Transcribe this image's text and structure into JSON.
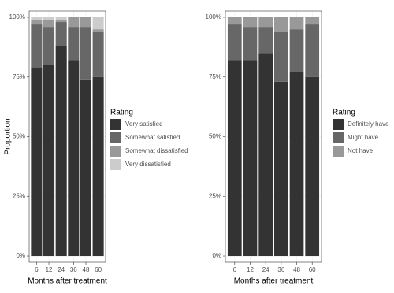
{
  "chart_data": [
    {
      "type": "stacked_bar",
      "x_label": "Months after treatment",
      "y_label": "Proportion",
      "categories": [
        "6",
        "12",
        "24",
        "36",
        "48",
        "60"
      ],
      "ylim": [
        0,
        100
      ],
      "yticks": [
        {
          "value": 0,
          "label": "0%"
        },
        {
          "value": 25,
          "label": "25%"
        },
        {
          "value": 50,
          "label": "50%"
        },
        {
          "value": 75,
          "label": "75%"
        },
        {
          "value": 100,
          "label": "100%"
        }
      ],
      "legend_title": "Rating",
      "series": [
        {
          "name": "Very satisfied",
          "color": "#333333",
          "values": [
            79,
            80,
            88,
            82,
            74,
            75
          ]
        },
        {
          "name": "Somewhat satisfied",
          "color": "#676767",
          "values": [
            18,
            16,
            10,
            14,
            22,
            19
          ]
        },
        {
          "name": "Somewhat dissatisfied",
          "color": "#999999",
          "values": [
            2,
            3,
            1,
            4,
            4,
            1
          ]
        },
        {
          "name": "Very dissatisfied",
          "color": "#cccccc",
          "values": [
            1,
            1,
            1,
            0,
            0,
            5
          ]
        }
      ]
    },
    {
      "type": "stacked_bar",
      "x_label": "Months after treatment",
      "categories": [
        "6",
        "12",
        "24",
        "36",
        "48",
        "60"
      ],
      "ylim": [
        0,
        100
      ],
      "yticks": [
        {
          "value": 0,
          "label": "0%"
        },
        {
          "value": 25,
          "label": "25%"
        },
        {
          "value": 50,
          "label": "50%"
        },
        {
          "value": 75,
          "label": "75%"
        },
        {
          "value": 100,
          "label": "100%"
        }
      ],
      "legend_title": "Rating",
      "series": [
        {
          "name": "Definitely have",
          "color": "#333333",
          "values": [
            82,
            82,
            85,
            73,
            77,
            75
          ]
        },
        {
          "name": "Might have",
          "color": "#676767",
          "values": [
            15,
            14,
            11,
            21,
            18,
            22
          ]
        },
        {
          "name": "Not have",
          "color": "#999999",
          "values": [
            3,
            4,
            4,
            6,
            5,
            3
          ]
        }
      ]
    }
  ]
}
